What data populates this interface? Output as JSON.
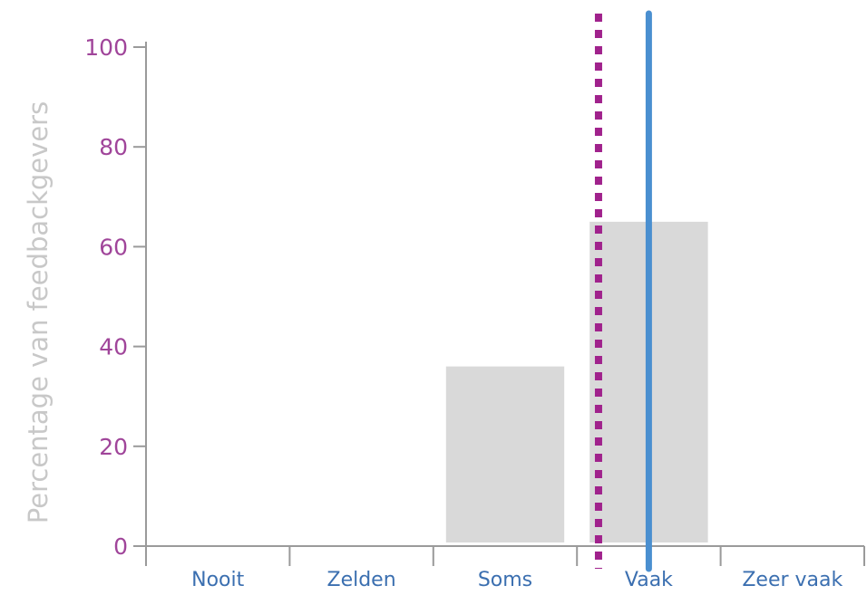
{
  "chart_data": {
    "type": "bar",
    "categories": [
      "Nooit",
      "Zelden",
      "Soms",
      "Vaak",
      "Zeer vaak"
    ],
    "values": [
      0,
      0,
      36,
      65,
      0
    ],
    "ylabel": "Percentage van feedbackgevers",
    "xlabel": "",
    "title": "",
    "ylim": [
      0,
      100
    ],
    "yticks": [
      0,
      20,
      40,
      60,
      80,
      100
    ],
    "grid": false,
    "reference_lines": [
      {
        "style": "dotted",
        "color": "#a0228c",
        "x_category_position": 3.15
      },
      {
        "style": "solid",
        "color": "#4a8fd0",
        "x_category_position": 3.5
      }
    ],
    "colors": {
      "bar": "#d9d9d9",
      "axis": "#9a9a9a",
      "ytick_text": "#a0459a",
      "xtick_text": "#3b6fb0",
      "ylabel_text": "#c8c8c8"
    }
  }
}
